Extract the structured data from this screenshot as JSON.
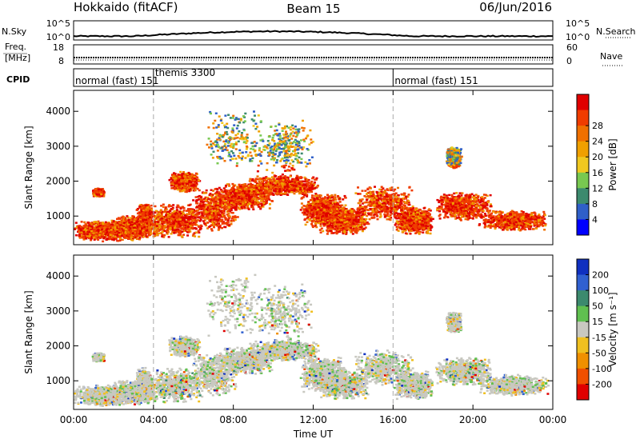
{
  "header": {
    "station": "Hokkaido (fitACF)",
    "beam": "Beam 15",
    "date": "06/Jun/2016"
  },
  "summary_panels": {
    "nsky": {
      "label": "N.Sky",
      "right_label": "N.Search",
      "left_ticks": [
        "10^5",
        "10^0"
      ],
      "right_ticks": [
        "10^5",
        "10^0"
      ]
    },
    "freq": {
      "label_lines": [
        "Freq.",
        "[MHz]"
      ],
      "right_label": "Nave",
      "left_ticks": [
        "18",
        "8"
      ],
      "right_ticks": [
        "60",
        "0"
      ]
    },
    "cpid": {
      "label": "CPID",
      "modes": [
        {
          "text": "normal (fast) 151",
          "start_hour": 0
        },
        {
          "text": "themis 3300",
          "start_hour": 4
        },
        {
          "text": "normal (fast) 151",
          "start_hour": 16
        }
      ]
    }
  },
  "chart_data": [
    {
      "type": "heatmap",
      "name": "power",
      "ylabel": "Slant Range [km]",
      "ylim": [
        180,
        4600
      ],
      "yticks": [
        1000,
        2000,
        3000,
        4000
      ],
      "xlim_hours": [
        0,
        24
      ],
      "colorbar": {
        "label": "Power [dB]",
        "ticks": [
          "4",
          "8",
          "12",
          "16",
          "20",
          "24",
          "28"
        ],
        "colors": [
          "#0000ff",
          "#2f5fc8",
          "#3c8a6e",
          "#78c850",
          "#f0c820",
          "#f0a000",
          "#f07000",
          "#f03c00",
          "#e00000"
        ]
      },
      "gridlines_hours": [
        4,
        16
      ]
    },
    {
      "type": "heatmap",
      "name": "velocity",
      "ylabel": "Slant Range [km]",
      "ylim": [
        180,
        4600
      ],
      "yticks": [
        1000,
        2000,
        3000,
        4000
      ],
      "xlim_hours": [
        0,
        24
      ],
      "xticks": [
        "00:00",
        "04:00",
        "08:00",
        "12:00",
        "16:00",
        "20:00",
        "00:00"
      ],
      "xlabel": "Time UT",
      "colorbar": {
        "label": "Velocity [m s⁻¹]",
        "ticks": [
          "200",
          "100",
          "50",
          "15",
          "-15",
          "-50",
          "-100",
          "-200"
        ],
        "colors": [
          "#1030c0",
          "#3060d0",
          "#3c8a6e",
          "#60c050",
          "#c8c8c0",
          "#f0c020",
          "#f09000",
          "#f05000",
          "#e00000"
        ]
      },
      "gridlines_hours": [
        4,
        16
      ]
    }
  ]
}
